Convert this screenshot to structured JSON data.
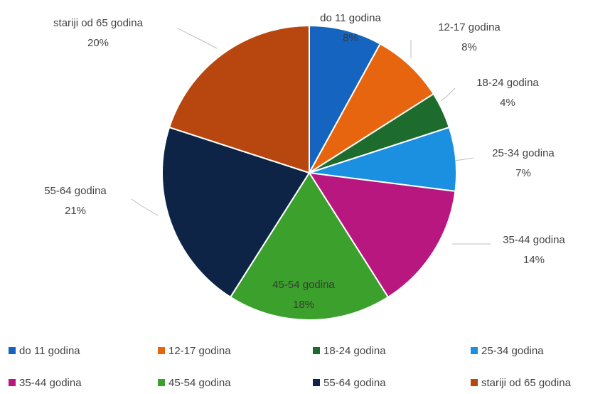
{
  "chart_data": {
    "type": "pie",
    "categories": [
      "do 11 godina",
      "12-17 godina",
      "18-24 godina",
      "25-34 godina",
      "35-44 godina",
      "45-54 godina",
      "55-64 godina",
      "stariji od 65 godina"
    ],
    "values": [
      8,
      8,
      4,
      7,
      14,
      18,
      21,
      20
    ],
    "data_labels": [
      "8%",
      "8%",
      "4%",
      "7%",
      "14%",
      "18%",
      "21%",
      "20%"
    ],
    "colors": [
      "#1565c0",
      "#e8650f",
      "#1e6b2e",
      "#1b8fe0",
      "#b8177f",
      "#3ca02c",
      "#0d2447",
      "#b8470f"
    ],
    "legend_position": "bottom",
    "start_angle_deg": 0,
    "direction": "clockwise"
  }
}
